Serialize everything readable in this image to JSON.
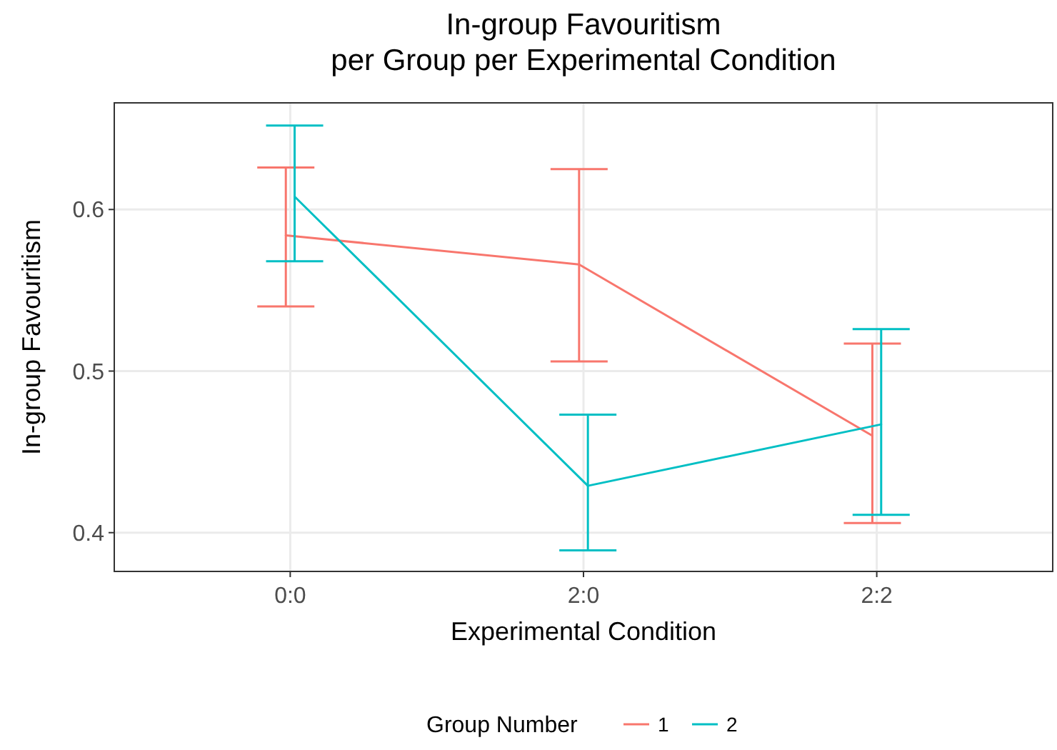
{
  "chart_data": {
    "type": "line",
    "title": "In-group Favouritism\nper Group per Experimental Condition",
    "xlabel": "Experimental Condition",
    "ylabel": "In-group Favouritism",
    "legend_title": "Group Number",
    "categories": [
      "0:0",
      "2:0",
      "2:2"
    ],
    "series": [
      {
        "name": "1",
        "color": "#f8766d",
        "values": [
          0.584,
          0.566,
          0.46
        ],
        "errors": [
          [
            0.54,
            0.626
          ],
          [
            0.506,
            0.625
          ],
          [
            0.406,
            0.517
          ]
        ]
      },
      {
        "name": "2",
        "color": "#00bfc4",
        "values": [
          0.608,
          0.429,
          0.467
        ],
        "errors": [
          [
            0.568,
            0.652
          ],
          [
            0.389,
            0.473
          ],
          [
            0.411,
            0.526
          ]
        ]
      }
    ],
    "ylim": [
      0.376,
      0.666
    ],
    "yticks": [
      0.4,
      0.5,
      0.6
    ],
    "grid": true,
    "legend": "bottom",
    "marker": "none",
    "line_style": "solid"
  }
}
